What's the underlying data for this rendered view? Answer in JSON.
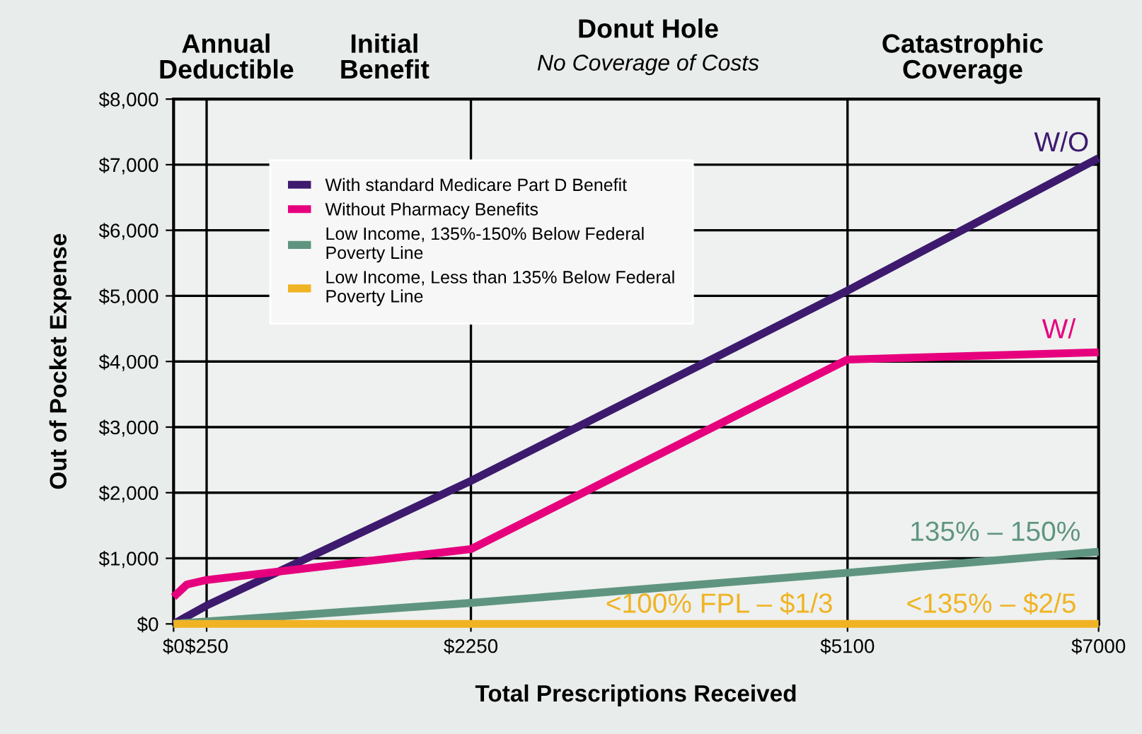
{
  "chart_data": {
    "type": "line",
    "xlabel": "Total Prescriptions Received",
    "ylabel": "Out of Pocket Expense",
    "xlim": [
      0,
      7000
    ],
    "xticks": [
      {
        "value": 0,
        "label": "$0"
      },
      {
        "value": 250,
        "label": "$250"
      },
      {
        "value": 2250,
        "label": "$2250"
      },
      {
        "value": 5100,
        "label": "$5100"
      },
      {
        "value": 7000,
        "label": "$7000"
      }
    ],
    "ylim": [
      0,
      8000
    ],
    "yticks": [
      {
        "value": 0,
        "label": "$0"
      },
      {
        "value": 1000,
        "label": "$1,000"
      },
      {
        "value": 2000,
        "label": "$2,000"
      },
      {
        "value": 3000,
        "label": "$3,000"
      },
      {
        "value": 4000,
        "label": "$4,000"
      },
      {
        "value": 5000,
        "label": "$5,000"
      },
      {
        "value": 6000,
        "label": "$6,000"
      },
      {
        "value": 7000,
        "label": "$7,000"
      },
      {
        "value": 8000,
        "label": "$8,000"
      }
    ],
    "grid": true,
    "legend": "top left",
    "marker": "none",
    "line_style": "solid",
    "series": [
      {
        "name": "With standard Medicare Part D Benefit",
        "color": "#3d1a6e",
        "x": [
          0,
          250,
          2250,
          5100,
          7000
        ],
        "values": [
          0,
          280,
          2180,
          5080,
          7100
        ]
      },
      {
        "name": "Without Pharmacy Benefits",
        "color": "#e6007e",
        "x": [
          0,
          100,
          250,
          2250,
          5100,
          7000
        ],
        "values": [
          410,
          600,
          670,
          1140,
          4030,
          4140
        ]
      },
      {
        "name": "Low Income, 135%-150% Below Federal\nPoverty Line",
        "color": "#5f9580",
        "x": [
          0,
          2250,
          5100,
          7000
        ],
        "values": [
          0,
          320,
          780,
          1100
        ]
      },
      {
        "name": "Low Income, Less than 135% Below Federal\nPoverty Line",
        "color": "#f0b323",
        "x": [
          0,
          7000
        ],
        "values": [
          0,
          0
        ]
      }
    ],
    "annotations": [
      "Annual\nDeductible",
      "Initial\nBenefit",
      "Donut Hole",
      "No Coverage of Costs",
      "Catastrophic\nCoverage",
      "W/O",
      "W/",
      "135% – 150%",
      "<100% FPL – $1/3",
      "<135% – $2/5"
    ]
  }
}
